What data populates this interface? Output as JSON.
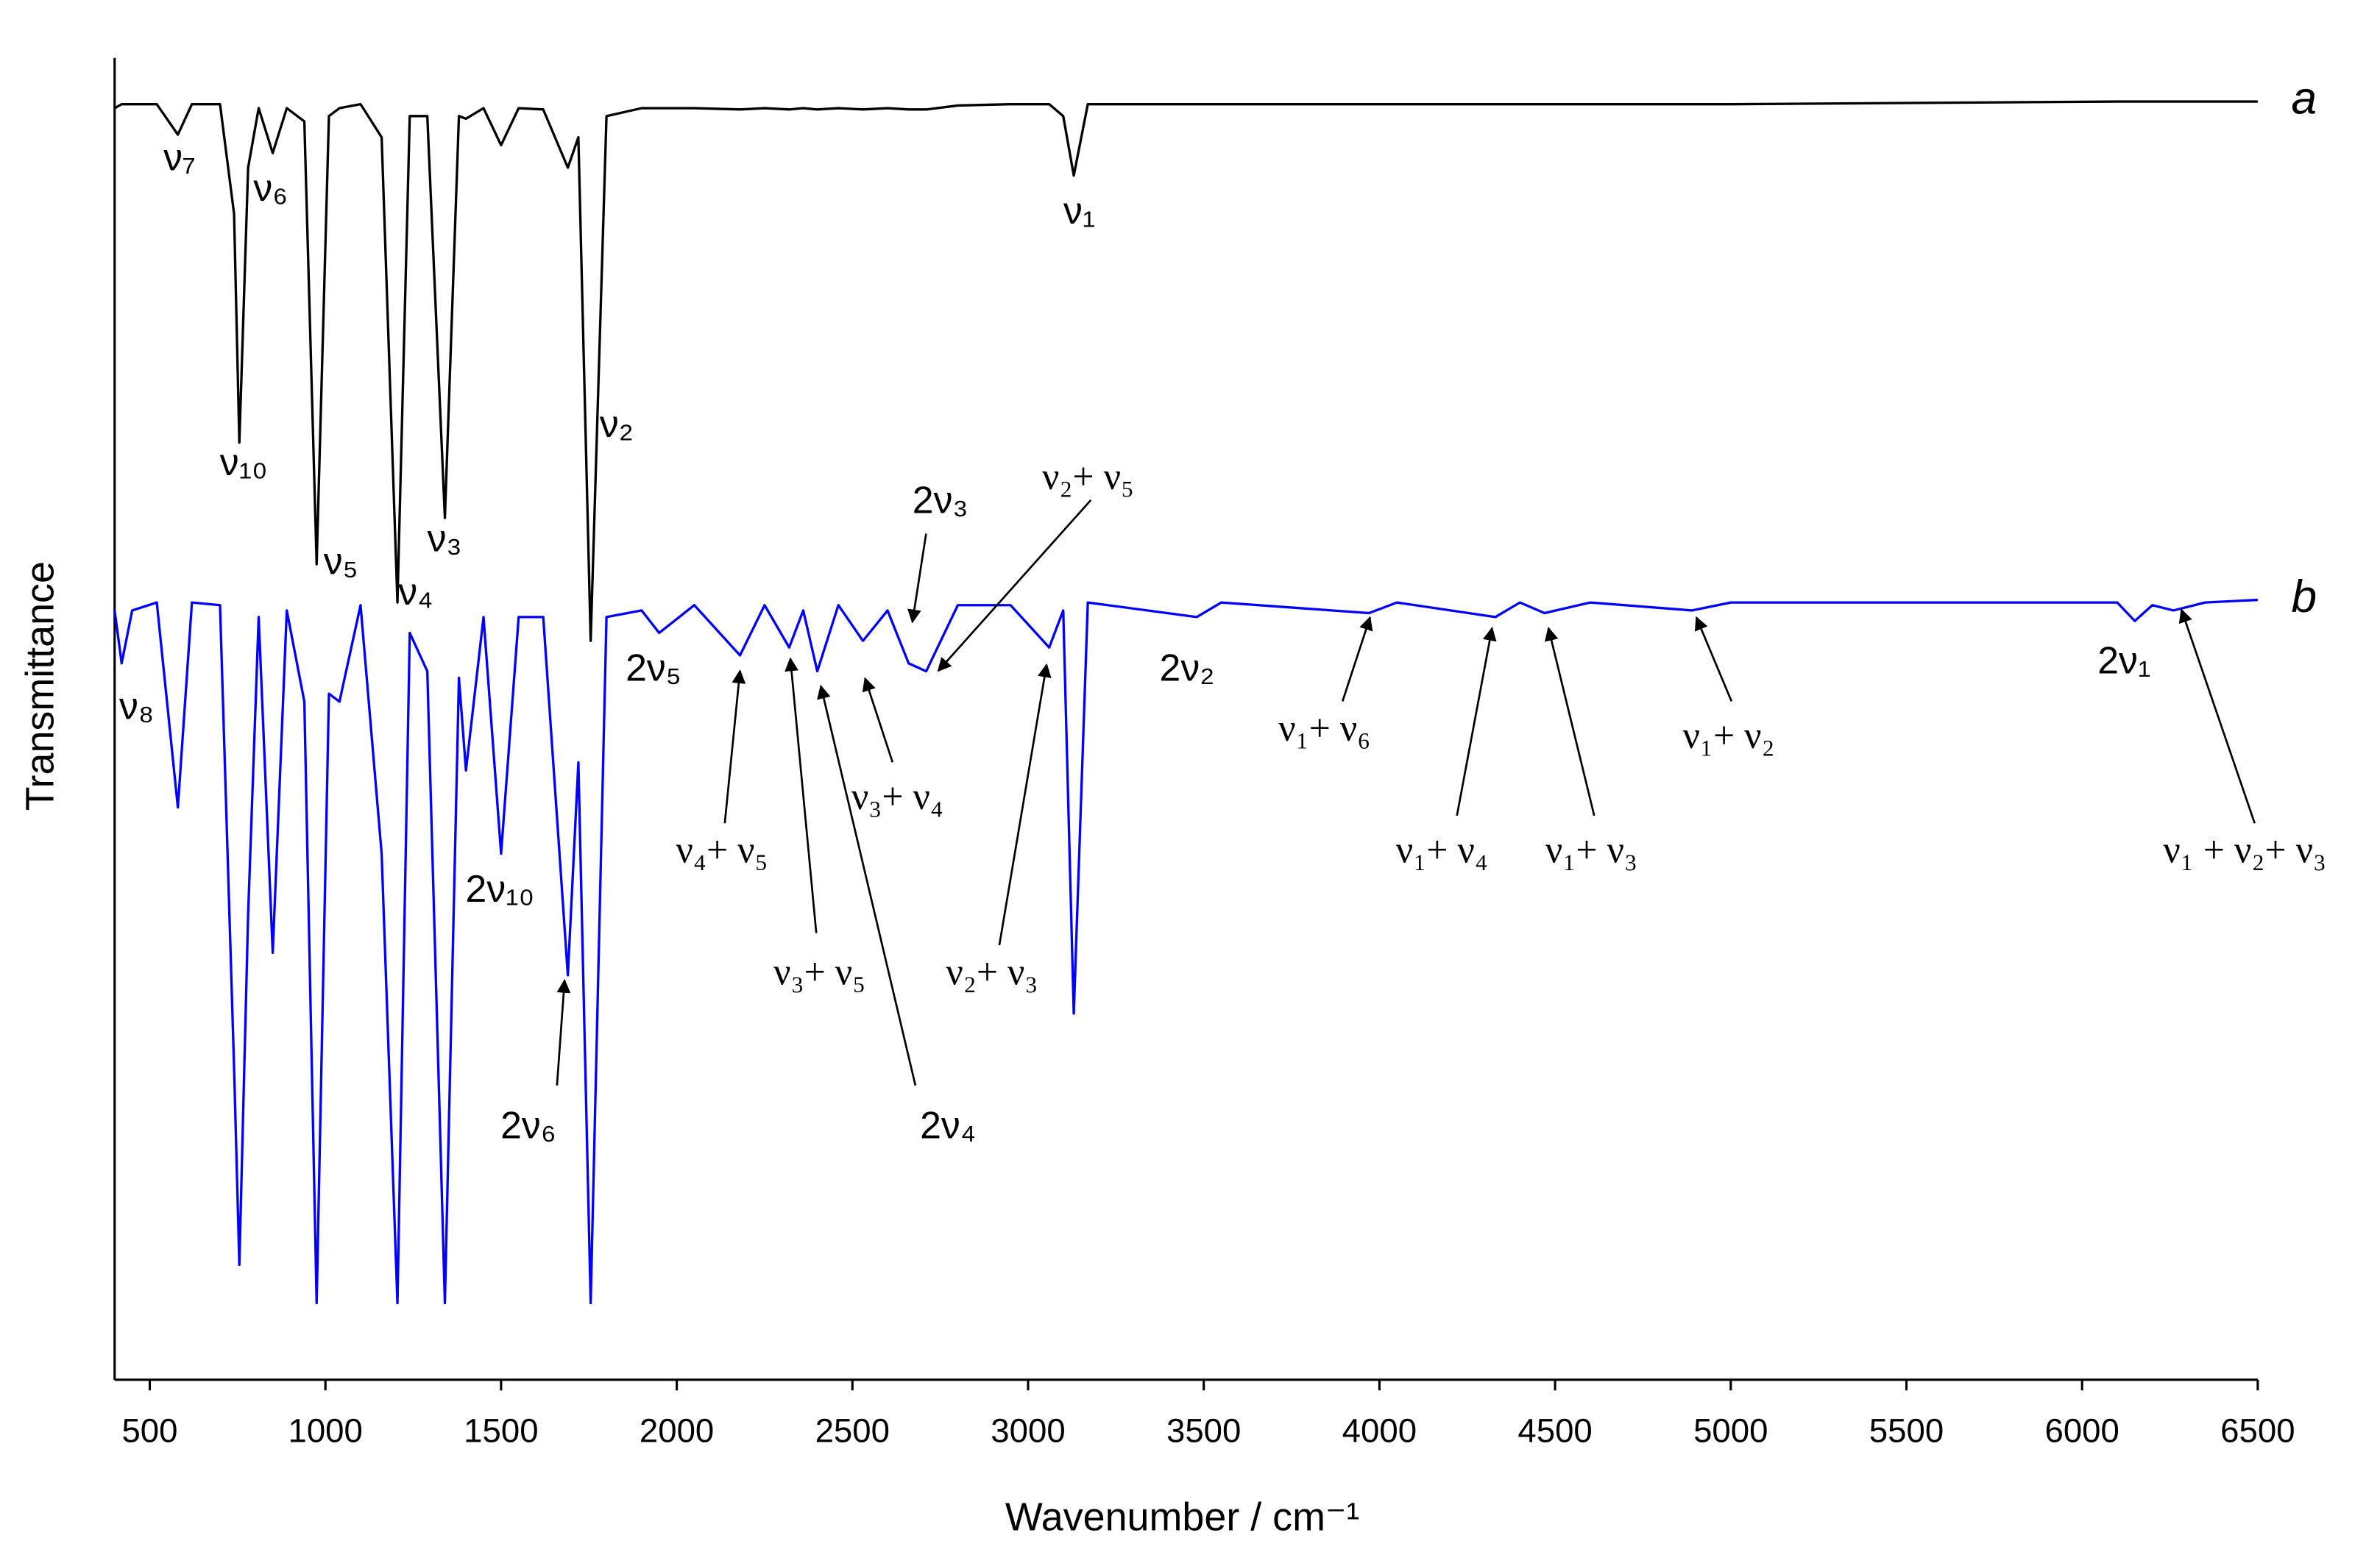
{
  "chart_data": {
    "type": "line",
    "xlabel": "Wavenumber / cm⁻¹",
    "ylabel": "Transmittance",
    "xlim": [
      400,
      6500
    ],
    "xticks": [
      500,
      1000,
      1500,
      2000,
      2500,
      3000,
      3500,
      4000,
      4500,
      5000,
      5500,
      6000,
      6500
    ],
    "ylim": [
      0,
      100
    ],
    "grid": false,
    "x": [
      400,
      420,
      450,
      520,
      580,
      620,
      700,
      740,
      755,
      780,
      810,
      850,
      890,
      940,
      975,
      1010,
      1040,
      1100,
      1160,
      1205,
      1240,
      1290,
      1340,
      1380,
      1400,
      1450,
      1500,
      1550,
      1620,
      1690,
      1720,
      1755,
      1800,
      1900,
      1950,
      2050,
      2180,
      2250,
      2320,
      2360,
      2400,
      2460,
      2530,
      2600,
      2660,
      2710,
      2800,
      2950,
      3060,
      3100,
      3130,
      3170,
      3480,
      3550,
      3970,
      4050,
      4330,
      4400,
      4470,
      4600,
      4890,
      5000,
      6100,
      6150,
      6200,
      6260,
      6350,
      6500
    ],
    "series": [
      {
        "name": "a",
        "color": "#000000",
        "values": [
          96.2,
          96.5,
          96.5,
          96.5,
          94.2,
          96.5,
          96.5,
          88.2,
          70.9,
          91.7,
          96.2,
          92.8,
          96.2,
          95.2,
          61.7,
          95.6,
          96.2,
          96.5,
          94.0,
          58.8,
          95.6,
          95.6,
          65.2,
          95.6,
          95.4,
          96.2,
          93.4,
          96.2,
          96.1,
          91.7,
          94.0,
          55.9,
          95.6,
          96.2,
          96.2,
          96.2,
          96.1,
          96.2,
          96.1,
          96.2,
          96.1,
          96.2,
          96.1,
          96.2,
          96.1,
          96.1,
          96.4,
          96.5,
          96.5,
          95.6,
          91.1,
          96.5,
          96.5,
          96.5,
          96.5,
          96.5,
          96.5,
          96.5,
          96.5,
          96.5,
          96.5,
          96.5,
          96.7,
          96.7,
          96.7,
          96.7,
          96.7,
          96.7
        ]
      },
      {
        "name": "b",
        "color": "#0000ff",
        "values": [
          58.2,
          54.2,
          58.2,
          58.8,
          43.3,
          58.8,
          58.6,
          23.6,
          8.7,
          35.2,
          57.7,
          32.3,
          58.2,
          51.3,
          5.8,
          51.9,
          51.3,
          58.6,
          39.8,
          5.8,
          56.5,
          53.6,
          5.8,
          53.1,
          46.1,
          57.7,
          39.8,
          57.7,
          57.7,
          30.6,
          46.7,
          5.8,
          57.7,
          58.2,
          56.5,
          58.6,
          54.8,
          58.6,
          55.4,
          58.2,
          53.6,
          58.6,
          55.9,
          58.2,
          54.2,
          53.6,
          58.6,
          58.6,
          55.4,
          58.2,
          27.7,
          58.8,
          57.7,
          58.8,
          58.0,
          58.8,
          57.7,
          58.8,
          58.0,
          58.8,
          58.2,
          58.8,
          58.8,
          57.4,
          58.6,
          58.2,
          58.8,
          59.0
        ]
      }
    ],
    "annotations": [
      "ν₇",
      "ν₆",
      "ν₁",
      "ν₁₀",
      "ν₂",
      "ν₅",
      "ν₃",
      "ν₄",
      "ν₈",
      "2ν₅",
      "2ν₁₀",
      "2ν₆",
      "2ν₃",
      "ν₂+ ν₅",
      "ν₄+ ν₅",
      "ν₃+ ν₅",
      "2ν₄",
      "ν₃+ ν₄",
      "ν₂+ ν₃",
      "2ν₂",
      "ν₁+ ν₆",
      "ν₁+ ν₄",
      "ν₁+ ν₃",
      "ν₁+ ν₂",
      "2ν₁",
      "ν₁ + ν₂+ ν₃"
    ]
  }
}
